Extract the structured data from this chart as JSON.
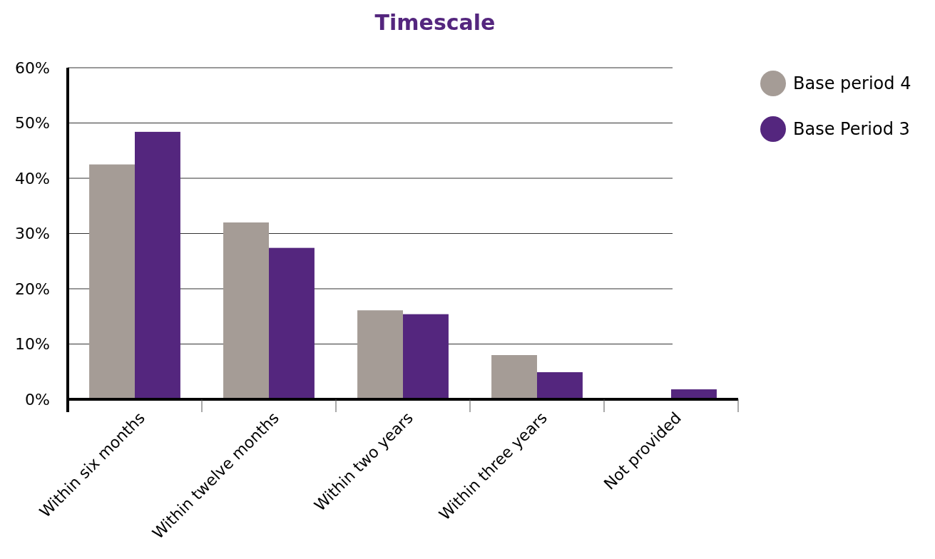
{
  "chart_data": {
    "type": "bar",
    "title": "Timescale",
    "categories": [
      "Within six months",
      "Within twelve months",
      "Within two years",
      "Within three years",
      "Not provided"
    ],
    "series": [
      {
        "name": "Base period 4",
        "color": "#a59c96",
        "values": [
          42.5,
          32,
          16.1,
          8,
          0
        ]
      },
      {
        "name": "Base Period 3",
        "color": "#54267e",
        "values": [
          48.4,
          27.4,
          15.4,
          4.9,
          1.8
        ]
      }
    ],
    "ylim": [
      0,
      60
    ],
    "yticks": [
      {
        "value": 0,
        "label": "0%"
      },
      {
        "value": 10,
        "label": "10%"
      },
      {
        "value": 20,
        "label": "20%"
      },
      {
        "value": 30,
        "label": "30%"
      },
      {
        "value": 40,
        "label": "40%"
      },
      {
        "value": 50,
        "label": "50%"
      },
      {
        "value": 60,
        "label": "60%"
      }
    ],
    "grid": "y",
    "legend": "top right"
  }
}
